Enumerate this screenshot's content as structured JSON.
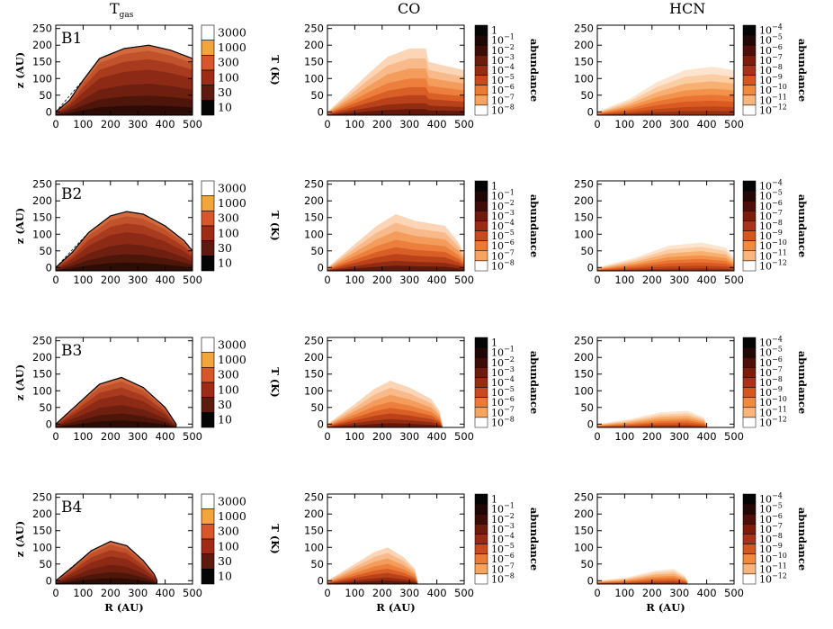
{
  "column_titles": {
    "tgas_main": "T",
    "tgas_sub": "gas",
    "co": "CO",
    "hcn": "HCN"
  },
  "axes": {
    "xlabel": "R (AU)",
    "ylabel": "z (AU)",
    "xticks": [
      "0",
      "100",
      "200",
      "300",
      "400",
      "500"
    ],
    "yticks": [
      "0",
      "50",
      "100",
      "150",
      "200",
      "250"
    ],
    "xlim": [
      0,
      500
    ],
    "ylim": [
      -10,
      260
    ]
  },
  "colorbars": {
    "temperature": {
      "label": "T (K)",
      "levels": [
        "3000",
        "1000",
        "300",
        "100",
        "30",
        "10"
      ]
    },
    "co": {
      "label": "abundance",
      "levels": [
        [
          "1",
          ""
        ],
        [
          "10",
          "−1"
        ],
        [
          "10",
          "−2"
        ],
        [
          "10",
          "−3"
        ],
        [
          "10",
          "−4"
        ],
        [
          "10",
          "−5"
        ],
        [
          "10",
          "−6"
        ],
        [
          "10",
          "−7"
        ],
        [
          "10",
          "−8"
        ]
      ]
    },
    "hcn": {
      "label": "abundance",
      "levels": [
        [
          "10",
          "−4"
        ],
        [
          "10",
          "−5"
        ],
        [
          "10",
          "−6"
        ],
        [
          "10",
          "−7"
        ],
        [
          "10",
          "−8"
        ],
        [
          "10",
          "−9"
        ],
        [
          "10",
          "−10"
        ],
        [
          "10",
          "−11"
        ],
        [
          "10",
          "−12"
        ]
      ]
    }
  },
  "colors": {
    "temperature": [
      "#ffffff",
      "#f4a43c",
      "#d9562a",
      "#a02a16",
      "#5e1a0e",
      "#050505"
    ],
    "co": [
      "#050505",
      "#1e0705",
      "#3e0c07",
      "#6e1a0c",
      "#9a2a12",
      "#c84a1e",
      "#ec7a32",
      "#f6a45e",
      "#fbd0a8"
    ],
    "hcn": [
      "#050505",
      "#230805",
      "#4e0f08",
      "#7e1c0c",
      "#a8321a",
      "#d4581e",
      "#f08a3c",
      "#f9b57c",
      "#fcd8b8"
    ]
  },
  "chart_data": [
    {
      "type": "heatmap",
      "model": "B1",
      "quantity": "Tgas",
      "disk_outline_z": [
        [
          0,
          0
        ],
        [
          50,
          35
        ],
        [
          100,
          95
        ],
        [
          160,
          160
        ],
        [
          250,
          190
        ],
        [
          340,
          200
        ],
        [
          420,
          185
        ],
        [
          500,
          160
        ]
      ],
      "interior_value_K": 100
    },
    {
      "type": "heatmap",
      "model": "B1",
      "quantity": "CO abundance",
      "outer_envelope_z": [
        [
          0,
          0
        ],
        [
          80,
          60
        ],
        [
          150,
          115
        ],
        [
          220,
          165
        ],
        [
          300,
          190
        ],
        [
          360,
          190
        ],
        [
          370,
          150
        ],
        [
          420,
          140
        ],
        [
          500,
          125
        ]
      ]
    },
    {
      "type": "heatmap",
      "model": "B1",
      "quantity": "HCN abundance",
      "outer_envelope_z": [
        [
          0,
          0
        ],
        [
          120,
          40
        ],
        [
          220,
          90
        ],
        [
          320,
          125
        ],
        [
          420,
          135
        ],
        [
          500,
          125
        ]
      ]
    },
    {
      "type": "heatmap",
      "model": "B2",
      "quantity": "Tgas",
      "disk_outline_z": [
        [
          0,
          0
        ],
        [
          60,
          45
        ],
        [
          120,
          105
        ],
        [
          200,
          155
        ],
        [
          260,
          168
        ],
        [
          320,
          160
        ],
        [
          400,
          125
        ],
        [
          470,
          80
        ],
        [
          500,
          50
        ]
      ],
      "interior_value_K": 100
    },
    {
      "type": "heatmap",
      "model": "B2",
      "quantity": "CO abundance",
      "outer_envelope_z": [
        [
          0,
          0
        ],
        [
          100,
          70
        ],
        [
          180,
          125
        ],
        [
          250,
          160
        ],
        [
          320,
          140
        ],
        [
          430,
          125
        ],
        [
          480,
          75
        ],
        [
          500,
          40
        ]
      ]
    },
    {
      "type": "heatmap",
      "model": "B2",
      "quantity": "HCN abundance",
      "outer_envelope_z": [
        [
          0,
          0
        ],
        [
          140,
          30
        ],
        [
          260,
          65
        ],
        [
          380,
          75
        ],
        [
          470,
          60
        ],
        [
          500,
          30
        ]
      ]
    },
    {
      "type": "heatmap",
      "model": "B3",
      "quantity": "Tgas",
      "disk_outline_z": [
        [
          0,
          0
        ],
        [
          80,
          60
        ],
        [
          160,
          120
        ],
        [
          240,
          140
        ],
        [
          320,
          110
        ],
        [
          400,
          50
        ],
        [
          440,
          0
        ]
      ],
      "interior_value_K": 100
    },
    {
      "type": "heatmap",
      "model": "B3",
      "quantity": "CO abundance",
      "outer_envelope_z": [
        [
          0,
          0
        ],
        [
          100,
          60
        ],
        [
          170,
          105
        ],
        [
          230,
          130
        ],
        [
          300,
          110
        ],
        [
          380,
          75
        ],
        [
          410,
          40
        ],
        [
          420,
          0
        ]
      ]
    },
    {
      "type": "heatmap",
      "model": "B3",
      "quantity": "HCN abundance",
      "outer_envelope_z": [
        [
          0,
          0
        ],
        [
          120,
          15
        ],
        [
          230,
          35
        ],
        [
          330,
          40
        ],
        [
          390,
          20
        ],
        [
          400,
          0
        ]
      ]
    },
    {
      "type": "heatmap",
      "model": "B4",
      "quantity": "Tgas",
      "disk_outline_z": [
        [
          0,
          0
        ],
        [
          60,
          40
        ],
        [
          130,
          90
        ],
        [
          200,
          118
        ],
        [
          260,
          105
        ],
        [
          320,
          60
        ],
        [
          360,
          20
        ],
        [
          370,
          0
        ]
      ],
      "interior_value_K": 100
    },
    {
      "type": "heatmap",
      "model": "B4",
      "quantity": "CO abundance",
      "outer_envelope_z": [
        [
          0,
          0
        ],
        [
          100,
          50
        ],
        [
          170,
          85
        ],
        [
          220,
          100
        ],
        [
          280,
          70
        ],
        [
          320,
          35
        ],
        [
          330,
          0
        ]
      ]
    },
    {
      "type": "heatmap",
      "model": "B4",
      "quantity": "HCN abundance",
      "outer_envelope_z": [
        [
          0,
          0
        ],
        [
          110,
          10
        ],
        [
          210,
          30
        ],
        [
          280,
          35
        ],
        [
          320,
          15
        ],
        [
          330,
          0
        ]
      ]
    }
  ]
}
